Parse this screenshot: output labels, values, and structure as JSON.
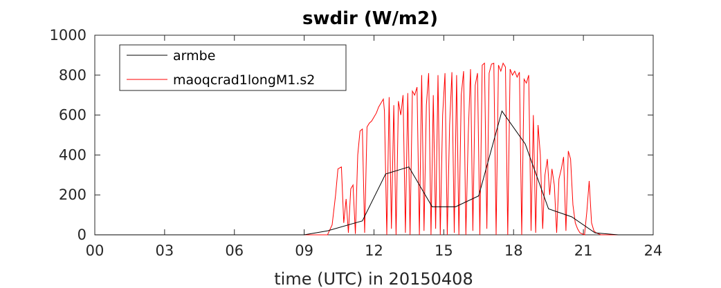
{
  "chart_data": {
    "type": "line",
    "title": "swdir  (W/m2)",
    "xlabel": "time (UTC) in 20150408",
    "ylabel": "",
    "xlim": [
      0,
      24
    ],
    "ylim": [
      0,
      1000
    ],
    "xticks": [
      0,
      3,
      6,
      9,
      12,
      15,
      18,
      21,
      24
    ],
    "xtick_labels": [
      "00",
      "03",
      "06",
      "09",
      "12",
      "15",
      "18",
      "21",
      "24"
    ],
    "yticks": [
      0,
      200,
      400,
      600,
      800,
      1000
    ],
    "ytick_labels": [
      "0",
      "200",
      "400",
      "600",
      "800",
      "1000"
    ],
    "grid": false,
    "legend_position": "top-left",
    "series": [
      {
        "name": "armbe",
        "color": "#000000",
        "x": [
          0,
          9,
          10,
          11.5,
          12.5,
          13.5,
          14.5,
          15.5,
          16.5,
          17.5,
          18.5,
          19.5,
          20.5,
          21.5,
          22.5,
          24
        ],
        "y": [
          0,
          0,
          20,
          70,
          305,
          340,
          140,
          140,
          195,
          620,
          455,
          130,
          90,
          10,
          0,
          0
        ]
      },
      {
        "name": "maoqcrad1longM1.s2",
        "color": "#ff0000",
        "x": [
          0,
          10.0,
          10.2,
          10.35,
          10.45,
          10.6,
          10.7,
          10.8,
          10.9,
          11.0,
          11.1,
          11.2,
          11.3,
          11.4,
          11.5,
          11.6,
          11.7,
          11.8,
          11.9,
          12.0,
          12.1,
          12.2,
          12.3,
          12.4,
          12.45,
          12.55,
          12.65,
          12.75,
          12.85,
          12.95,
          13.05,
          13.15,
          13.25,
          13.35,
          13.45,
          13.55,
          13.65,
          13.75,
          13.85,
          13.95,
          14.05,
          14.15,
          14.25,
          14.35,
          14.45,
          14.55,
          14.65,
          14.75,
          14.85,
          14.95,
          15.05,
          15.15,
          15.25,
          15.35,
          15.45,
          15.55,
          15.65,
          15.75,
          15.85,
          15.95,
          16.05,
          16.15,
          16.25,
          16.35,
          16.45,
          16.55,
          16.65,
          16.75,
          16.85,
          16.95,
          17.05,
          17.15,
          17.25,
          17.35,
          17.45,
          17.55,
          17.65,
          17.75,
          17.85,
          17.95,
          18.05,
          18.15,
          18.25,
          18.35,
          18.45,
          18.55,
          18.65,
          18.75,
          18.85,
          18.95,
          19.05,
          19.15,
          19.25,
          19.35,
          19.45,
          19.55,
          19.65,
          19.75,
          19.85,
          19.95,
          20.05,
          20.15,
          20.25,
          20.35,
          20.45,
          20.55,
          20.65,
          20.75,
          20.85,
          20.95,
          21.05,
          21.15,
          21.25,
          21.35,
          21.45,
          21.55,
          21.65,
          21.75,
          22.0,
          24.0
        ],
        "y": [
          0,
          0,
          50,
          200,
          330,
          340,
          60,
          180,
          10,
          230,
          250,
          5,
          400,
          520,
          530,
          10,
          540,
          560,
          570,
          590,
          610,
          640,
          660,
          680,
          620,
          0,
          690,
          30,
          650,
          0,
          670,
          600,
          700,
          10,
          710,
          0,
          720,
          700,
          740,
          0,
          800,
          20,
          650,
          810,
          0,
          700,
          30,
          800,
          0,
          600,
          810,
          0,
          550,
          815,
          10,
          800,
          0,
          700,
          820,
          0,
          500,
          830,
          20,
          750,
          810,
          0,
          850,
          860,
          30,
          810,
          855,
          860,
          0,
          850,
          820,
          860,
          840,
          0,
          830,
          800,
          820,
          790,
          815,
          0,
          780,
          760,
          800,
          20,
          600,
          10,
          550,
          400,
          30,
          300,
          380,
          200,
          330,
          250,
          10,
          280,
          330,
          390,
          20,
          420,
          380,
          150,
          60,
          30,
          10,
          5,
          0,
          120,
          270,
          60,
          20,
          10,
          5,
          0,
          0,
          0
        ]
      }
    ]
  }
}
